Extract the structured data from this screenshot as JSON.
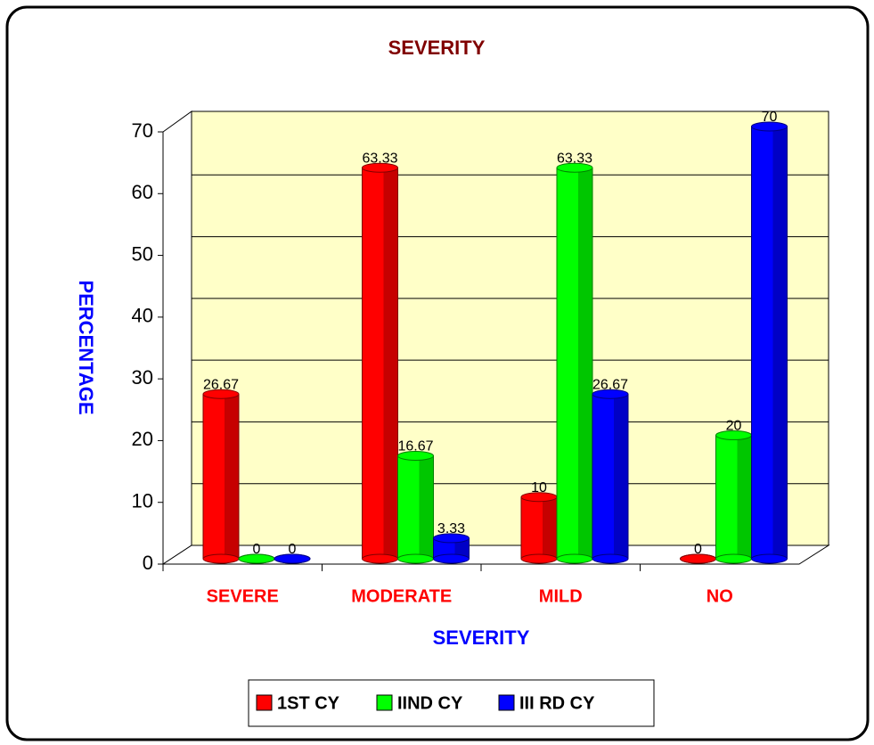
{
  "chart_data": {
    "type": "bar3d",
    "title": "SEVERITY",
    "xlabel": "SEVERITY",
    "ylabel": "PERCENTAGE",
    "categories": [
      "SEVERE",
      "MODERATE",
      "MILD",
      "NO"
    ],
    "series": [
      {
        "name": "1ST CY",
        "color": "#ff0000",
        "values": [
          26.67,
          63.33,
          10,
          0
        ]
      },
      {
        "name": "IIND CY",
        "color": "#00ff00",
        "values": [
          0,
          16.67,
          63.33,
          20
        ]
      },
      {
        "name": "III RD CY",
        "color": "#0000ff",
        "values": [
          0,
          3.33,
          26.67,
          70
        ]
      }
    ],
    "ylim": [
      0,
      70
    ],
    "yticks": [
      0,
      10,
      20,
      30,
      40,
      50,
      60,
      70
    ],
    "grid": true,
    "legend": "bottom"
  }
}
